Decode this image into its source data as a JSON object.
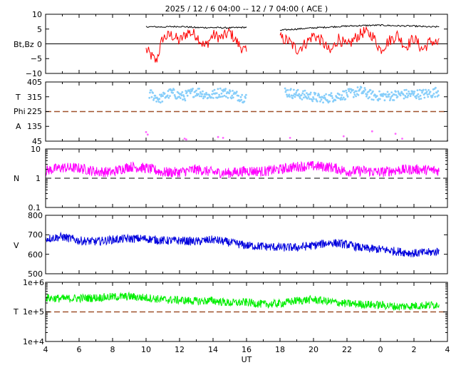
{
  "title": "2025 / 12 /  6   04:00 -- 12 /  7   04:00 ( ACE )",
  "x_axis": {
    "label": "UT",
    "ticks": [
      {
        "v": 0,
        "t": "4"
      },
      {
        "v": 2,
        "t": "6"
      },
      {
        "v": 4,
        "t": "8"
      },
      {
        "v": 6,
        "t": "10"
      },
      {
        "v": 8,
        "t": "12"
      },
      {
        "v": 10,
        "t": "14"
      },
      {
        "v": 12,
        "t": "16"
      },
      {
        "v": 14,
        "t": "18"
      },
      {
        "v": 16,
        "t": "20"
      },
      {
        "v": 18,
        "t": "22"
      },
      {
        "v": 20,
        "t": "0"
      },
      {
        "v": 22,
        "t": "2"
      },
      {
        "v": 24,
        "t": "4"
      }
    ]
  },
  "colors": {
    "bt": "#000000",
    "bz": "#ff0000",
    "theta": "#87cefa",
    "phi_a": "#ff66ff",
    "phi_b": "#bbbbbb",
    "density": "#ff00ff",
    "speed": "#0000dd",
    "temperature": "#00ee00",
    "ref_dashed": "#a0522d"
  },
  "panels": {
    "mag": {
      "ylabel": "Bt,Bz",
      "ticks": [
        "10",
        "5",
        "0",
        "−5",
        "−10"
      ]
    },
    "angle": {
      "ylabel_t": "T",
      "ylabel_phi": "Phi",
      "ylabel_a": "A",
      "ticks": [
        "405",
        "315",
        "225",
        "135",
        "45"
      ]
    },
    "density": {
      "ylabel": "N",
      "ticks": [
        "10",
        "1",
        "0.1"
      ]
    },
    "speed": {
      "ylabel": "V",
      "ticks": [
        "800",
        "700",
        "600",
        "500"
      ]
    },
    "temp": {
      "ylabel": "T",
      "ticks": [
        "1e+6",
        "1e+5",
        "1e+4"
      ]
    }
  },
  "chart_data": [
    {
      "type": "line",
      "name": "magnetic field",
      "ylabel": "Bt,Bz",
      "ylim": [
        -10,
        10
      ],
      "x_units": "hours after 2025-12-06 04:00 UT",
      "gaps": [
        [
          0,
          6
        ],
        [
          12,
          14
        ]
      ],
      "series": [
        {
          "name": "Bt",
          "x": [
            6,
            7,
            8,
            9,
            10,
            11,
            12,
            14,
            15,
            16,
            17,
            18,
            19,
            20,
            21,
            22,
            23,
            23.5
          ],
          "y": [
            5.8,
            5.7,
            5.9,
            5.5,
            5.5,
            5.4,
            5.6,
            4.6,
            5.0,
            5.4,
            5.7,
            6.0,
            6.2,
            6.3,
            6.1,
            6.0,
            5.7,
            5.8
          ]
        },
        {
          "name": "Bz",
          "x": [
            6,
            6.3,
            6.6,
            7,
            7.5,
            8,
            8.5,
            9,
            9.5,
            10,
            10.5,
            11,
            11.5,
            12,
            14,
            14.5,
            15,
            15.5,
            16,
            16.5,
            17,
            17.5,
            18,
            18.5,
            19,
            19.5,
            20,
            20.5,
            21,
            21.5,
            22,
            22.5,
            23,
            23.5
          ],
          "y": [
            -2,
            -4,
            -6,
            2,
            3,
            1,
            4,
            3,
            -1,
            3,
            2,
            4,
            0,
            -3,
            2,
            1,
            -2,
            0,
            3,
            1,
            -3,
            2,
            -1,
            2,
            4,
            3,
            -2,
            1,
            3,
            -1,
            2,
            -2,
            1,
            0
          ]
        }
      ]
    },
    {
      "type": "scatter",
      "name": "angles",
      "ylim": [
        45,
        405
      ],
      "series": [
        {
          "name": "T",
          "x": [
            6.3,
            6.8,
            7.5,
            8.2,
            9.0,
            9.8,
            10.5,
            11.2,
            11.8,
            14.3,
            15.0,
            15.8,
            16.5,
            17.2,
            18.0,
            18.8,
            19.6,
            20.5,
            21.3,
            22.2,
            23.0,
            23.5
          ],
          "y": [
            330,
            300,
            340,
            315,
            350,
            320,
            345,
            330,
            310,
            345,
            330,
            320,
            300,
            315,
            330,
            350,
            320,
            320,
            330,
            330,
            335,
            350
          ]
        },
        {
          "name": "Phi",
          "x": [
            6.0,
            6.1,
            8.3,
            8.4,
            10.3,
            10.6,
            14.6,
            17.8,
            19.5,
            20.9,
            21.3
          ],
          "y": [
            100,
            85,
            60,
            55,
            70,
            65,
            65,
            75,
            105,
            90,
            60
          ]
        }
      ]
    },
    {
      "type": "line",
      "name": "density",
      "ylabel": "N",
      "ylim": [
        0.1,
        10
      ],
      "yscale": "log",
      "reference_line": 1,
      "series": [
        {
          "name": "N",
          "x": [
            0,
            1,
            2,
            3,
            4,
            5,
            6,
            7,
            8,
            9,
            10,
            11,
            12,
            13,
            14,
            15,
            16,
            17,
            18,
            19,
            20,
            21,
            22,
            23,
            23.5
          ],
          "y": [
            1.8,
            2.3,
            2.2,
            1.7,
            1.6,
            2.5,
            2.2,
            1.6,
            1.6,
            2.0,
            1.6,
            1.5,
            1.8,
            1.7,
            2.0,
            2.5,
            2.6,
            2.4,
            1.7,
            1.8,
            1.6,
            1.9,
            2.0,
            1.9,
            1.8
          ]
        }
      ]
    },
    {
      "type": "line",
      "name": "speed",
      "ylabel": "V",
      "ylim": [
        500,
        800
      ],
      "series": [
        {
          "name": "V",
          "x": [
            0,
            1,
            2,
            3,
            4,
            5,
            6,
            7,
            8,
            9,
            10,
            11,
            12,
            13,
            14,
            15,
            16,
            17,
            18,
            19,
            20,
            21,
            22,
            23,
            23.5
          ],
          "y": [
            680,
            690,
            670,
            665,
            675,
            680,
            680,
            670,
            670,
            665,
            675,
            660,
            645,
            640,
            635,
            635,
            645,
            660,
            650,
            630,
            625,
            615,
            605,
            610,
            615
          ]
        }
      ]
    },
    {
      "type": "line",
      "name": "temperature",
      "ylabel": "T",
      "ylim": [
        10000,
        1000000
      ],
      "yscale": "log",
      "reference_line": 100000,
      "series": [
        {
          "name": "T",
          "x": [
            0,
            1,
            2,
            3,
            4,
            5,
            6,
            7,
            8,
            9,
            10,
            11,
            12,
            13,
            14,
            15,
            16,
            17,
            18,
            19,
            20,
            21,
            22,
            23,
            23.5
          ],
          "y": [
            300000,
            280000,
            290000,
            300000,
            320000,
            330000,
            300000,
            260000,
            250000,
            230000,
            240000,
            200000,
            210000,
            180000,
            190000,
            240000,
            260000,
            220000,
            190000,
            180000,
            170000,
            150000,
            160000,
            170000,
            180000
          ]
        }
      ]
    }
  ]
}
